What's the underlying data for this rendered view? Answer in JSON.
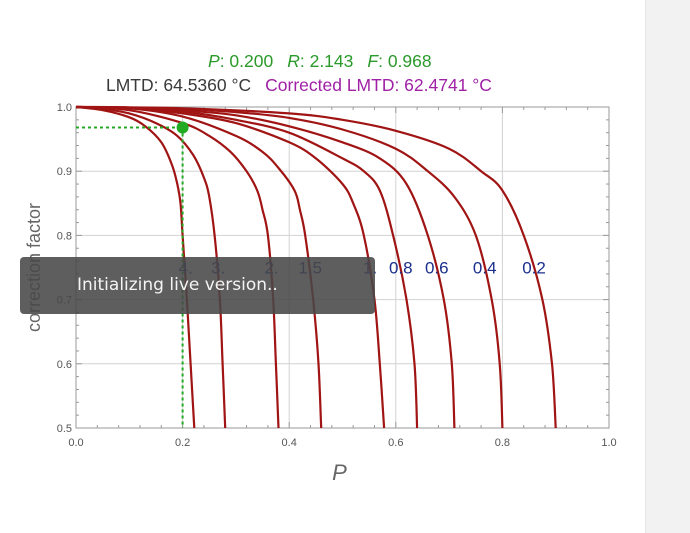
{
  "header": {
    "p_label": "P",
    "p_value": ": 0.200",
    "r_label": "R",
    "r_value": ": 2.143",
    "f_label": "F",
    "f_value": ": 0.968",
    "lmtd_text": "LMTD: 64.5360 °C",
    "corrected_lmtd_text": "Corrected LMTD: 62.4741 °C"
  },
  "overlay": {
    "text": "Initializing live version.."
  },
  "colors": {
    "curve": "#a01414",
    "marker": "#22aa22",
    "curve_label": "#1a2f8c",
    "overlay_bg": "#484848",
    "header_green": "#2a9a2a",
    "header_purple": "#a021a6"
  },
  "chart_data": {
    "type": "line",
    "xlabel": "P",
    "ylabel": "correction factor",
    "xlim": [
      0,
      1
    ],
    "ylim": [
      0.5,
      1.0
    ],
    "xticks": [
      "0.0",
      "0.2",
      "0.4",
      "0.6",
      "0.8",
      "1.0"
    ],
    "yticks": [
      "0.5",
      "0.6",
      "0.7",
      "0.8",
      "0.9",
      "1.0"
    ],
    "grid": true,
    "series": [
      {
        "name": "4.",
        "x": [
          0,
          0.05,
          0.1,
          0.13,
          0.16,
          0.18,
          0.19,
          0.196,
          0.2,
          0.208,
          0.215,
          0.222
        ],
        "y": [
          1.0,
          0.995,
          0.984,
          0.97,
          0.945,
          0.91,
          0.88,
          0.85,
          0.8,
          0.7,
          0.6,
          0.5
        ]
      },
      {
        "name": "3.",
        "x": [
          0,
          0.05,
          0.1,
          0.15,
          0.19,
          0.22,
          0.24,
          0.25,
          0.26,
          0.27,
          0.275,
          0.28
        ],
        "y": [
          1.0,
          0.997,
          0.99,
          0.975,
          0.955,
          0.925,
          0.89,
          0.86,
          0.8,
          0.7,
          0.6,
          0.5
        ]
      },
      {
        "name": "2.",
        "x": [
          0,
          0.1,
          0.2,
          0.25,
          0.29,
          0.32,
          0.34,
          0.35,
          0.36,
          0.37,
          0.375,
          0.38
        ],
        "y": [
          1.0,
          0.995,
          0.975,
          0.955,
          0.93,
          0.9,
          0.87,
          0.84,
          0.8,
          0.7,
          0.6,
          0.5
        ]
      },
      {
        "name": "1.5",
        "x": [
          0,
          0.1,
          0.2,
          0.3,
          0.35,
          0.38,
          0.41,
          0.42,
          0.43,
          0.445,
          0.455,
          0.46
        ],
        "y": [
          1.0,
          0.998,
          0.985,
          0.955,
          0.93,
          0.905,
          0.87,
          0.84,
          0.8,
          0.7,
          0.6,
          0.5
        ]
      },
      {
        "name": "1.",
        "x": [
          0,
          0.1,
          0.2,
          0.3,
          0.4,
          0.45,
          0.5,
          0.52,
          0.54,
          0.56,
          0.57,
          0.578
        ],
        "y": [
          1.0,
          0.999,
          0.99,
          0.975,
          0.945,
          0.92,
          0.88,
          0.85,
          0.8,
          0.7,
          0.6,
          0.5
        ]
      },
      {
        "name": "0.8",
        "x": [
          0,
          0.1,
          0.2,
          0.3,
          0.4,
          0.5,
          0.54,
          0.57,
          0.595,
          0.62,
          0.635,
          0.64
        ],
        "y": [
          1.0,
          0.999,
          0.993,
          0.98,
          0.96,
          0.92,
          0.9,
          0.87,
          0.8,
          0.7,
          0.6,
          0.5
        ]
      },
      {
        "name": "0.6",
        "x": [
          0,
          0.1,
          0.2,
          0.3,
          0.4,
          0.5,
          0.57,
          0.62,
          0.66,
          0.69,
          0.705,
          0.71
        ],
        "y": [
          1.0,
          0.999,
          0.995,
          0.987,
          0.97,
          0.945,
          0.92,
          0.88,
          0.8,
          0.7,
          0.6,
          0.5
        ]
      },
      {
        "name": "0.4",
        "x": [
          0,
          0.2,
          0.3,
          0.4,
          0.5,
          0.6,
          0.66,
          0.71,
          0.75,
          0.78,
          0.795,
          0.8
        ],
        "y": [
          1.0,
          0.997,
          0.992,
          0.983,
          0.965,
          0.935,
          0.9,
          0.86,
          0.8,
          0.7,
          0.6,
          0.5
        ]
      },
      {
        "name": "0.2",
        "x": [
          0,
          0.2,
          0.4,
          0.5,
          0.6,
          0.7,
          0.76,
          0.8,
          0.84,
          0.875,
          0.893,
          0.9
        ],
        "y": [
          1.0,
          0.998,
          0.99,
          0.98,
          0.963,
          0.935,
          0.9,
          0.87,
          0.8,
          0.7,
          0.6,
          0.5
        ]
      }
    ],
    "annotations": {
      "point": {
        "x": 0.2,
        "y": 0.968
      },
      "guide_lines": "dotted green from point to both axes"
    }
  }
}
